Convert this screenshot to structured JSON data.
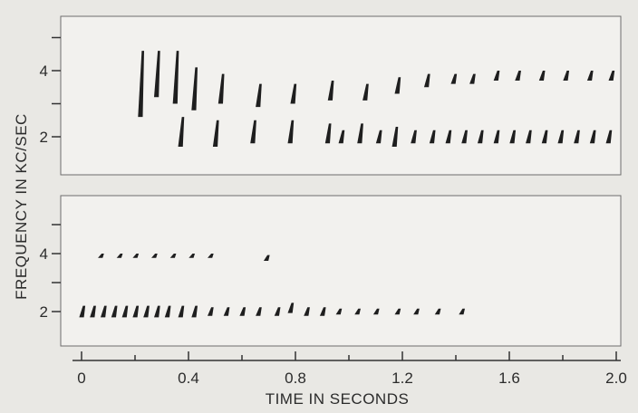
{
  "chart_data": [
    {
      "type": "scatter",
      "panel": "top",
      "xlabel": "TIME IN SECONDS",
      "ylabel": "FREQUENCY IN KC/SEC",
      "xlim": [
        0,
        2.0
      ],
      "ylim": [
        1,
        5.5
      ],
      "y_ticks": [
        {
          "value": 2,
          "label": "2"
        },
        {
          "value": 3,
          "label": ""
        },
        {
          "value": 4,
          "label": "4"
        },
        {
          "value": 5,
          "label": ""
        }
      ],
      "grid": false,
      "series": [
        {
          "values": [
            {
              "t": 0.22,
              "f": 3.6,
              "f_low": 2.6,
              "f_high": 4.6
            },
            {
              "t": 0.28,
              "f": 4.2,
              "f_low": 3.2,
              "f_high": 4.6
            },
            {
              "t": 0.35,
              "f": 4.0,
              "f_low": 3.0,
              "f_high": 4.6
            },
            {
              "t": 0.42,
              "f": 3.6,
              "f_low": 2.8,
              "f_high": 4.1
            },
            {
              "t": 0.52,
              "f": 3.5,
              "f_low": 3.0,
              "f_high": 3.9
            },
            {
              "t": 0.66,
              "f": 3.3,
              "f_low": 2.9,
              "f_high": 3.6
            },
            {
              "t": 0.79,
              "f": 3.3,
              "f_low": 3.0,
              "f_high": 3.6
            },
            {
              "t": 0.93,
              "f": 3.4,
              "f_low": 3.1,
              "f_high": 3.7
            },
            {
              "t": 1.06,
              "f": 3.4,
              "f_low": 3.1,
              "f_high": 3.6
            },
            {
              "t": 1.18,
              "f": 3.6,
              "f_low": 3.3,
              "f_high": 3.8
            },
            {
              "t": 1.29,
              "f": 3.7,
              "f_low": 3.5,
              "f_high": 3.9
            },
            {
              "t": 1.39,
              "f": 3.8,
              "f_low": 3.6,
              "f_high": 3.9
            },
            {
              "t": 1.46,
              "f": 3.8,
              "f_low": 3.6,
              "f_high": 3.9
            },
            {
              "t": 1.55,
              "f": 3.9,
              "f_low": 3.7,
              "f_high": 4.0
            },
            {
              "t": 1.63,
              "f": 3.9,
              "f_low": 3.7,
              "f_high": 4.0
            },
            {
              "t": 1.72,
              "f": 3.9,
              "f_low": 3.7,
              "f_high": 4.0
            },
            {
              "t": 1.81,
              "f": 3.9,
              "f_low": 3.7,
              "f_high": 4.0
            },
            {
              "t": 1.9,
              "f": 3.9,
              "f_low": 3.7,
              "f_high": 4.0
            },
            {
              "t": 1.98,
              "f": 3.8,
              "f_low": 3.7,
              "f_high": 4.0
            }
          ]
        },
        {
          "values": [
            {
              "t": 0.37,
              "f": 2.0,
              "f_low": 1.7,
              "f_high": 2.6
            },
            {
              "t": 0.5,
              "f": 2.0,
              "f_low": 1.7,
              "f_high": 2.5
            },
            {
              "t": 0.64,
              "f": 2.1,
              "f_low": 1.8,
              "f_high": 2.5
            },
            {
              "t": 0.78,
              "f": 2.1,
              "f_low": 1.8,
              "f_high": 2.5
            },
            {
              "t": 0.92,
              "f": 2.1,
              "f_low": 1.8,
              "f_high": 2.4
            },
            {
              "t": 0.97,
              "f": 2.0,
              "f_low": 1.8,
              "f_high": 2.2
            },
            {
              "t": 1.04,
              "f": 2.1,
              "f_low": 1.8,
              "f_high": 2.4
            },
            {
              "t": 1.11,
              "f": 2.0,
              "f_low": 1.8,
              "f_high": 2.2
            },
            {
              "t": 1.17,
              "f": 2.0,
              "f_low": 1.7,
              "f_high": 2.3
            },
            {
              "t": 1.24,
              "f": 2.0,
              "f_low": 1.8,
              "f_high": 2.2
            },
            {
              "t": 1.31,
              "f": 2.0,
              "f_low": 1.8,
              "f_high": 2.2
            },
            {
              "t": 1.37,
              "f": 2.0,
              "f_low": 1.8,
              "f_high": 2.2
            },
            {
              "t": 1.43,
              "f": 2.0,
              "f_low": 1.8,
              "f_high": 2.2
            },
            {
              "t": 1.49,
              "f": 2.0,
              "f_low": 1.8,
              "f_high": 2.2
            },
            {
              "t": 1.55,
              "f": 2.0,
              "f_low": 1.8,
              "f_high": 2.2
            },
            {
              "t": 1.61,
              "f": 2.0,
              "f_low": 1.8,
              "f_high": 2.2
            },
            {
              "t": 1.67,
              "f": 2.0,
              "f_low": 1.8,
              "f_high": 2.2
            },
            {
              "t": 1.73,
              "f": 2.0,
              "f_low": 1.8,
              "f_high": 2.2
            },
            {
              "t": 1.79,
              "f": 2.0,
              "f_low": 1.8,
              "f_high": 2.2
            },
            {
              "t": 1.85,
              "f": 2.0,
              "f_low": 1.8,
              "f_high": 2.2
            },
            {
              "t": 1.91,
              "f": 2.0,
              "f_low": 1.8,
              "f_high": 2.2
            },
            {
              "t": 1.97,
              "f": 2.0,
              "f_low": 1.8,
              "f_high": 2.2
            }
          ]
        }
      ]
    },
    {
      "type": "scatter",
      "panel": "bottom",
      "xlabel": "TIME IN SECONDS",
      "ylabel": "FREQUENCY IN KC/SEC",
      "xlim": [
        0,
        2.0
      ],
      "ylim": [
        1,
        5.5
      ],
      "y_ticks": [
        {
          "value": 2,
          "label": "2"
        },
        {
          "value": 3,
          "label": ""
        },
        {
          "value": 4,
          "label": "4"
        },
        {
          "value": 5,
          "label": ""
        }
      ],
      "x_ticks": [
        {
          "value": 0,
          "label": "0"
        },
        {
          "value": 0.4,
          "label": "0.4"
        },
        {
          "value": 0.8,
          "label": "0.8"
        },
        {
          "value": 1.2,
          "label": "1.2"
        },
        {
          "value": 1.6,
          "label": "1.6"
        },
        {
          "value": 2.0,
          "label": "2.0"
        }
      ],
      "x_minor_ticks": [
        0.2,
        0.6,
        1.0,
        1.4,
        1.8
      ],
      "grid": false,
      "series": [
        {
          "values": [
            {
              "t": 0.07,
              "f": 3.9,
              "f_low": 3.85,
              "f_high": 4.0
            },
            {
              "t": 0.14,
              "f": 3.9,
              "f_low": 3.85,
              "f_high": 4.0
            },
            {
              "t": 0.2,
              "f": 3.9,
              "f_low": 3.85,
              "f_high": 4.0
            },
            {
              "t": 0.27,
              "f": 3.9,
              "f_low": 3.85,
              "f_high": 4.0
            },
            {
              "t": 0.34,
              "f": 3.9,
              "f_low": 3.85,
              "f_high": 4.0
            },
            {
              "t": 0.41,
              "f": 3.9,
              "f_low": 3.85,
              "f_high": 4.0
            },
            {
              "t": 0.48,
              "f": 3.9,
              "f_low": 3.85,
              "f_high": 4.0
            },
            {
              "t": 0.69,
              "f": 3.8,
              "f_low": 3.75,
              "f_high": 3.95
            }
          ]
        },
        {
          "values": [
            {
              "t": 0.0,
              "f": 2.0,
              "f_low": 1.8,
              "f_high": 2.2
            },
            {
              "t": 0.04,
              "f": 2.0,
              "f_low": 1.8,
              "f_high": 2.2
            },
            {
              "t": 0.08,
              "f": 2.0,
              "f_low": 1.8,
              "f_high": 2.2
            },
            {
              "t": 0.12,
              "f": 2.0,
              "f_low": 1.8,
              "f_high": 2.2
            },
            {
              "t": 0.16,
              "f": 2.0,
              "f_low": 1.8,
              "f_high": 2.2
            },
            {
              "t": 0.2,
              "f": 2.0,
              "f_low": 1.8,
              "f_high": 2.2
            },
            {
              "t": 0.24,
              "f": 2.0,
              "f_low": 1.8,
              "f_high": 2.2
            },
            {
              "t": 0.28,
              "f": 2.0,
              "f_low": 1.8,
              "f_high": 2.2
            },
            {
              "t": 0.32,
              "f": 2.0,
              "f_low": 1.8,
              "f_high": 2.2
            },
            {
              "t": 0.37,
              "f": 2.0,
              "f_low": 1.8,
              "f_high": 2.2
            },
            {
              "t": 0.42,
              "f": 2.0,
              "f_low": 1.8,
              "f_high": 2.2
            },
            {
              "t": 0.48,
              "f": 2.0,
              "f_low": 1.85,
              "f_high": 2.15
            },
            {
              "t": 0.54,
              "f": 2.0,
              "f_low": 1.85,
              "f_high": 2.15
            },
            {
              "t": 0.6,
              "f": 2.0,
              "f_low": 1.85,
              "f_high": 2.15
            },
            {
              "t": 0.66,
              "f": 2.0,
              "f_low": 1.85,
              "f_high": 2.15
            },
            {
              "t": 0.73,
              "f": 2.0,
              "f_low": 1.85,
              "f_high": 2.15
            },
            {
              "t": 0.78,
              "f": 2.1,
              "f_low": 1.95,
              "f_high": 2.3
            },
            {
              "t": 0.84,
              "f": 2.0,
              "f_low": 1.85,
              "f_high": 2.15
            },
            {
              "t": 0.9,
              "f": 2.0,
              "f_low": 1.85,
              "f_high": 2.15
            },
            {
              "t": 0.96,
              "f": 2.0,
              "f_low": 1.9,
              "f_high": 2.1
            },
            {
              "t": 1.03,
              "f": 2.0,
              "f_low": 1.9,
              "f_high": 2.1
            },
            {
              "t": 1.1,
              "f": 2.0,
              "f_low": 1.9,
              "f_high": 2.1
            },
            {
              "t": 1.18,
              "f": 2.0,
              "f_low": 1.9,
              "f_high": 2.1
            },
            {
              "t": 1.25,
              "f": 2.0,
              "f_low": 1.9,
              "f_high": 2.1
            },
            {
              "t": 1.33,
              "f": 2.0,
              "f_low": 1.9,
              "f_high": 2.1
            },
            {
              "t": 1.42,
              "f": 2.0,
              "f_low": 1.9,
              "f_high": 2.1
            }
          ]
        }
      ]
    }
  ]
}
